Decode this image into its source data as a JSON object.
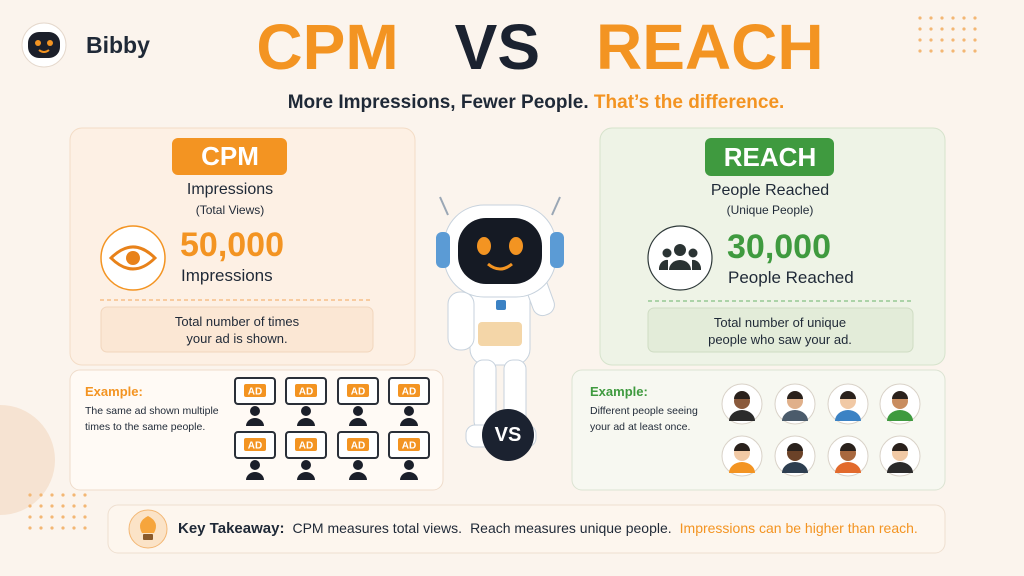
{
  "brand": {
    "name": "Bibby"
  },
  "header": {
    "title": {
      "left": "CPM",
      "middle": "VS",
      "right": "REACH"
    },
    "subtitle": {
      "main": "More Impressions, Fewer People.",
      "highlight": "That’s the difference."
    }
  },
  "cpm_panel": {
    "badge": "CPM",
    "heading": "Impressions",
    "subheading": "(Total Views)",
    "metric": "50,000",
    "metric_label": "Impressions",
    "definition": [
      "Total number of times",
      "your ad is shown."
    ],
    "example": {
      "label": "Example:",
      "text": [
        "The same ad shown multiple",
        "times to the same people."
      ],
      "screens": [
        "AD",
        "AD",
        "AD",
        "AD",
        "AD",
        "AD",
        "AD",
        "AD"
      ]
    }
  },
  "vs_badge": "VS",
  "reach_panel": {
    "badge": "REACH",
    "heading": "People Reached",
    "subheading": "(Unique People)",
    "metric": "30,000",
    "metric_label": "People Reached",
    "definition": [
      "Total number of unique",
      "people who saw your ad."
    ],
    "example": {
      "label": "Example:",
      "text": [
        "Different people seeing",
        "your ad at least once."
      ]
    }
  },
  "takeaway": {
    "label": "Key Takeaway:",
    "points": [
      "CPM measures total views.",
      "Reach measures unique people.",
      "Impressions can be higher than reach."
    ]
  }
}
